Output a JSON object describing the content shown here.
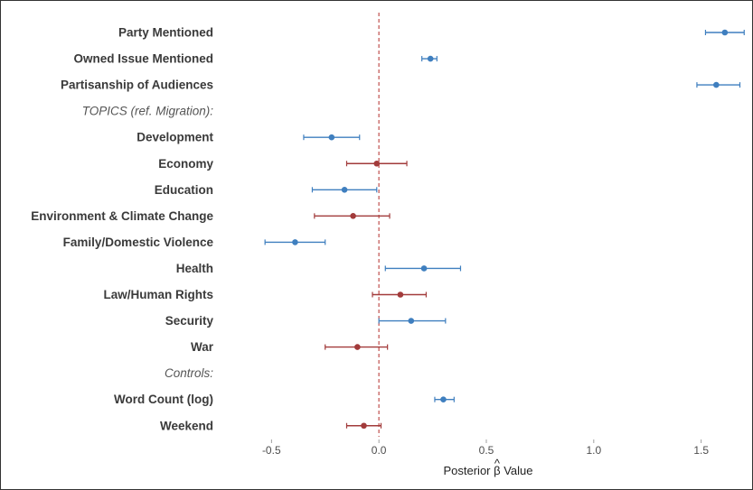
{
  "chart_data": {
    "type": "scatter",
    "subtype": "coefficient-plot-with-intervals",
    "xlabel": "Posterior β Value",
    "xlabel_main": "Posterior ",
    "xlabel_symbol": "β",
    "xlabel_hat": "^",
    "xlabel_tail": " Value",
    "xlim": [
      -0.72,
      1.72
    ],
    "xticks": [
      -0.5,
      0.0,
      0.5,
      1.0,
      1.5
    ],
    "xtick_labels": [
      "-0.5",
      "0.0",
      "0.5",
      "1.0",
      "1.5"
    ],
    "reference_line": {
      "x": 0,
      "style": "dashed",
      "color": "#c0504d"
    },
    "colors": {
      "positive": "#3f7fbf",
      "not_credible": "#a23b3b"
    },
    "rows": [
      {
        "label": "Party Mentioned",
        "kind": "term",
        "estimate": 1.61,
        "lower": 1.52,
        "upper": 1.7,
        "color": "blue"
      },
      {
        "label": "Owned Issue Mentioned",
        "kind": "term",
        "estimate": 0.24,
        "lower": 0.2,
        "upper": 0.27,
        "color": "blue"
      },
      {
        "label": "Partisanship of Audiences",
        "kind": "term",
        "estimate": 1.57,
        "lower": 1.48,
        "upper": 1.68,
        "color": "blue"
      },
      {
        "label": "TOPICS (ref. Migration):",
        "kind": "header"
      },
      {
        "label": "Development",
        "kind": "term",
        "estimate": -0.22,
        "lower": -0.35,
        "upper": -0.09,
        "color": "blue"
      },
      {
        "label": "Economy",
        "kind": "term",
        "estimate": -0.01,
        "lower": -0.15,
        "upper": 0.13,
        "color": "red"
      },
      {
        "label": "Education",
        "kind": "term",
        "estimate": -0.16,
        "lower": -0.31,
        "upper": -0.01,
        "color": "blue"
      },
      {
        "label": "Environment & Climate Change",
        "kind": "term",
        "estimate": -0.12,
        "lower": -0.3,
        "upper": 0.05,
        "color": "red"
      },
      {
        "label": "Family/Domestic Violence",
        "kind": "term",
        "estimate": -0.39,
        "lower": -0.53,
        "upper": -0.25,
        "color": "blue"
      },
      {
        "label": "Health",
        "kind": "term",
        "estimate": 0.21,
        "lower": 0.03,
        "upper": 0.38,
        "color": "blue"
      },
      {
        "label": "Law/Human Rights",
        "kind": "term",
        "estimate": 0.1,
        "lower": -0.03,
        "upper": 0.22,
        "color": "red"
      },
      {
        "label": "Security",
        "kind": "term",
        "estimate": 0.15,
        "lower": 0.0,
        "upper": 0.31,
        "color": "blue"
      },
      {
        "label": "War",
        "kind": "term",
        "estimate": -0.1,
        "lower": -0.25,
        "upper": 0.04,
        "color": "red"
      },
      {
        "label": "Controls:",
        "kind": "header"
      },
      {
        "label": "Word Count (log)",
        "kind": "term",
        "estimate": 0.3,
        "lower": 0.26,
        "upper": 0.35,
        "color": "blue"
      },
      {
        "label": "Weekend",
        "kind": "term",
        "estimate": -0.07,
        "lower": -0.15,
        "upper": 0.01,
        "color": "red"
      }
    ]
  }
}
